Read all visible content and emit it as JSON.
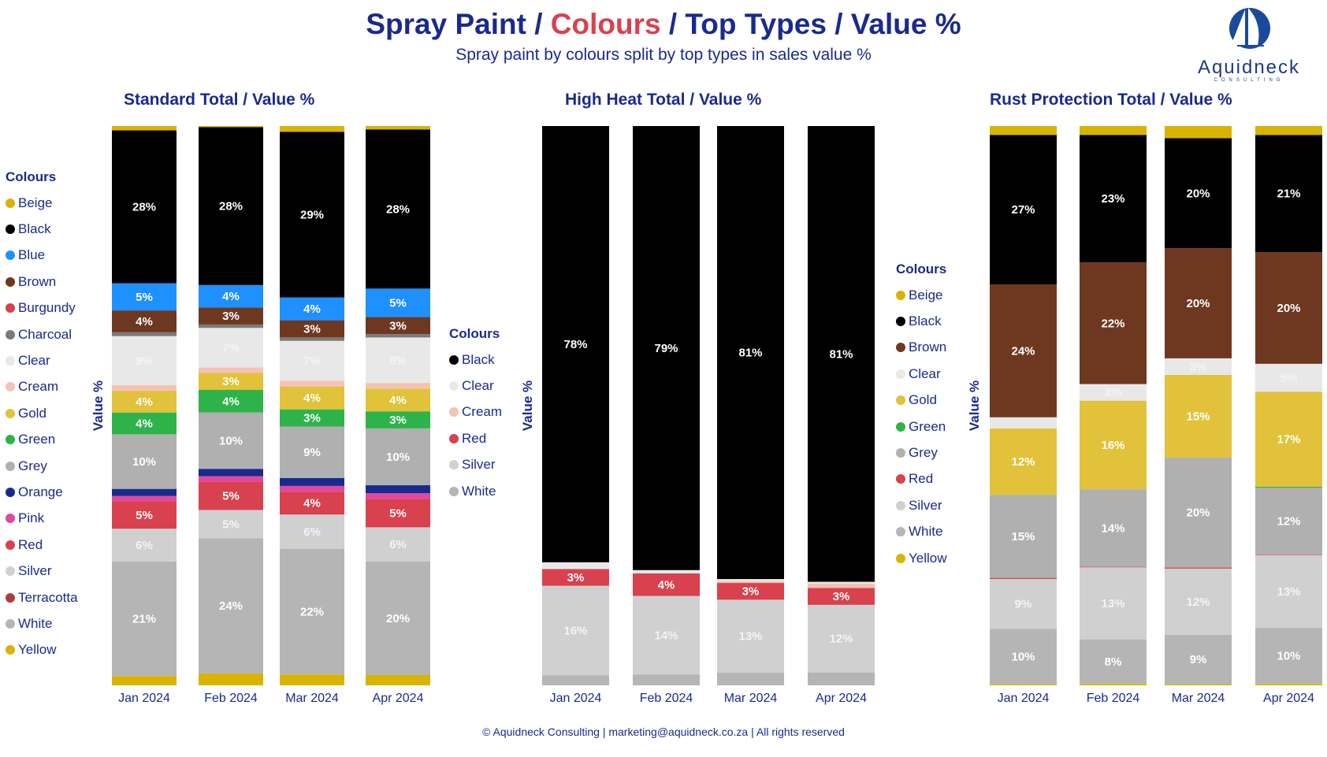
{
  "header": {
    "title_part1": "Spray Paint / ",
    "title_accent": "Colours",
    "title_part2": " / Top Types / Value %",
    "subtitle": "Spray paint by colours split by top types in sales value %"
  },
  "logo": {
    "name": "Aquidneck",
    "sub": "CONSULTING",
    "icon": "sailboat-logo-icon"
  },
  "footer": "© Aquidneck Consulting  | marketing@aquidneck.co.za | All rights reserved",
  "colors": {
    "Beige": "#d9b300",
    "Black": "#000000",
    "Blue": "#1e90ff",
    "Brown": "#6e3820",
    "Burgundy": "#d9414e",
    "Charcoal": "#7a7a7a",
    "Clear": "#e8e8e8",
    "Cream": "#f5c2b4",
    "Gold": "#e1c23a",
    "Green": "#2db34a",
    "Grey": "#b0b0b0",
    "Orange": "#1a2a8c",
    "Pink": "#e0479e",
    "Red": "#d9414e",
    "Silver": "#d0d0d0",
    "Terracotta": "#b03a3a",
    "White": "#b5b5b5",
    "Yellow": "#d9b300"
  },
  "chart_data": [
    {
      "type": "bar",
      "stacked": true,
      "title": "Standard Total / Value %",
      "ylabel": "Value %",
      "legend_title": "Colours",
      "legend": [
        "Beige",
        "Black",
        "Blue",
        "Brown",
        "Burgundy",
        "Charcoal",
        "Clear",
        "Cream",
        "Gold",
        "Green",
        "Grey",
        "Orange",
        "Pink",
        "Red",
        "Silver",
        "Terracotta",
        "White",
        "Yellow"
      ],
      "categories": [
        "Jan 2024",
        "Feb 2024",
        "Mar 2024",
        "Apr 2024"
      ],
      "series": [
        {
          "name": "Yellow",
          "values": [
            1.7,
            2.1,
            1.9,
            1.8
          ]
        },
        {
          "name": "White",
          "values": [
            21,
            24,
            22,
            20
          ]
        },
        {
          "name": "Silver",
          "values": [
            6,
            5,
            6,
            6
          ]
        },
        {
          "name": "Red",
          "values": [
            5,
            5,
            4,
            5
          ]
        },
        {
          "name": "Terracotta",
          "values": [
            0,
            0,
            0,
            0
          ]
        },
        {
          "name": "Pink",
          "values": [
            1,
            1,
            1,
            1
          ]
        },
        {
          "name": "Orange",
          "values": [
            1.3,
            1.3,
            1.4,
            1.4
          ]
        },
        {
          "name": "Grey",
          "values": [
            10,
            10,
            9,
            10
          ]
        },
        {
          "name": "Green",
          "values": [
            4,
            4,
            3,
            3
          ]
        },
        {
          "name": "Gold",
          "values": [
            4,
            3,
            4,
            4
          ]
        },
        {
          "name": "Cream",
          "values": [
            1,
            1,
            1,
            1
          ]
        },
        {
          "name": "Clear",
          "values": [
            9,
            7,
            7,
            8
          ]
        },
        {
          "name": "Charcoal",
          "values": [
            0.7,
            0.6,
            0.6,
            0.6
          ]
        },
        {
          "name": "Brown",
          "values": [
            4,
            3,
            3,
            3
          ]
        },
        {
          "name": "Blue",
          "values": [
            5,
            4,
            4,
            5
          ]
        },
        {
          "name": "Black",
          "values": [
            28,
            28,
            29,
            28
          ]
        },
        {
          "name": "Beige",
          "values": [
            0.8,
            0.2,
            1.0,
            0.6
          ]
        }
      ],
      "labels": [
        {
          "name": "White",
          "values": [
            "21%",
            "24%",
            "22%",
            "20%"
          ]
        },
        {
          "name": "Silver",
          "values": [
            "6%",
            "5%",
            "6%",
            "6%"
          ]
        },
        {
          "name": "Red",
          "values": [
            "5%",
            "5%",
            "4%",
            "5%"
          ]
        },
        {
          "name": "Grey",
          "values": [
            "10%",
            "10%",
            "9%",
            "10%"
          ]
        },
        {
          "name": "Green",
          "values": [
            "4%",
            "4%",
            "3%",
            "3%"
          ]
        },
        {
          "name": "Gold",
          "values": [
            "4%",
            "3%",
            "4%",
            "4%"
          ]
        },
        {
          "name": "Clear",
          "values": [
            "9%",
            "7%",
            "7%",
            "8%"
          ]
        },
        {
          "name": "Brown",
          "values": [
            "4%",
            "3%",
            "3%",
            "3%"
          ]
        },
        {
          "name": "Blue",
          "values": [
            "5%",
            "4%",
            "4%",
            "5%"
          ]
        },
        {
          "name": "Black",
          "values": [
            "28%",
            "28%",
            "29%",
            "28%"
          ]
        }
      ]
    },
    {
      "type": "bar",
      "stacked": true,
      "title": "High Heat Total / Value %",
      "ylabel": "Value %",
      "legend_title": "Colours",
      "legend": [
        "Black",
        "Clear",
        "Cream",
        "Red",
        "Silver",
        "White"
      ],
      "categories": [
        "Jan 2024",
        "Feb 2024",
        "Mar 2024",
        "Apr 2024"
      ],
      "series": [
        {
          "name": "White",
          "values": [
            1.8,
            1.9,
            2.3,
            2.3
          ]
        },
        {
          "name": "Silver",
          "values": [
            16,
            14,
            13,
            12
          ]
        },
        {
          "name": "Red",
          "values": [
            3,
            4,
            3,
            3
          ]
        },
        {
          "name": "Cream",
          "values": [
            0,
            0,
            0.3,
            0.8
          ]
        },
        {
          "name": "Clear",
          "values": [
            1.2,
            0.6,
            0.4,
            0.3
          ]
        },
        {
          "name": "Black",
          "values": [
            78,
            79,
            81,
            81
          ]
        }
      ],
      "labels": [
        {
          "name": "Silver",
          "values": [
            "16%",
            "14%",
            "13%",
            "12%"
          ]
        },
        {
          "name": "Red",
          "values": [
            "3%",
            "4%",
            "3%",
            "3%"
          ]
        },
        {
          "name": "Black",
          "values": [
            "78%",
            "79%",
            "81%",
            "81%"
          ]
        }
      ]
    },
    {
      "type": "bar",
      "stacked": true,
      "title": "Rust Protection Total / Value %",
      "ylabel": "Value %",
      "legend_title": "Colours",
      "legend": [
        "Beige",
        "Black",
        "Brown",
        "Clear",
        "Gold",
        "Green",
        "Grey",
        "Red",
        "Silver",
        "White",
        "Yellow"
      ],
      "categories": [
        "Jan 2024",
        "Feb 2024",
        "Mar 2024",
        "Apr 2024"
      ],
      "series": [
        {
          "name": "Yellow",
          "values": [
            0.2,
            0.3,
            0.2,
            0.3
          ]
        },
        {
          "name": "White",
          "values": [
            10,
            8,
            9,
            10
          ]
        },
        {
          "name": "Silver",
          "values": [
            9,
            13,
            12,
            13
          ]
        },
        {
          "name": "Red",
          "values": [
            0.2,
            0.1,
            0.2,
            0.1
          ]
        },
        {
          "name": "Grey",
          "values": [
            15,
            14,
            20,
            12
          ]
        },
        {
          "name": "Green",
          "values": [
            0,
            0,
            0,
            0.2
          ]
        },
        {
          "name": "Gold",
          "values": [
            12,
            16,
            15,
            17
          ]
        },
        {
          "name": "Clear",
          "values": [
            2,
            3,
            3,
            5
          ]
        },
        {
          "name": "Brown",
          "values": [
            24,
            22,
            20,
            20
          ]
        },
        {
          "name": "Black",
          "values": [
            27,
            23,
            20,
            21
          ]
        },
        {
          "name": "Beige",
          "values": [
            1.6,
            1.6,
            2.2,
            1.6
          ]
        }
      ],
      "labels": [
        {
          "name": "White",
          "values": [
            "10%",
            "8%",
            "9%",
            "10%"
          ]
        },
        {
          "name": "Silver",
          "values": [
            "9%",
            "13%",
            "12%",
            "13%"
          ]
        },
        {
          "name": "Grey",
          "values": [
            "15%",
            "14%",
            "20%",
            "12%"
          ]
        },
        {
          "name": "Gold",
          "values": [
            "12%",
            "16%",
            "15%",
            "17%"
          ]
        },
        {
          "name": "Clear",
          "values": [
            "",
            "3%",
            "3%",
            "5%"
          ]
        },
        {
          "name": "Brown",
          "values": [
            "24%",
            "22%",
            "20%",
            "20%"
          ]
        },
        {
          "name": "Black",
          "values": [
            "27%",
            "23%",
            "20%",
            "21%"
          ]
        }
      ]
    }
  ]
}
